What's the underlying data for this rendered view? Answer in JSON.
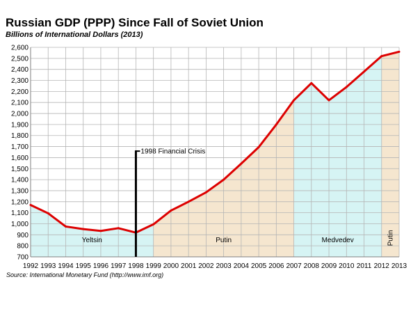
{
  "chart_data": {
    "type": "area",
    "title": "Russian GDP (PPP) Since Fall of Soviet Union",
    "subtitle": "Billions of International Dollars (2013)",
    "source": "Source: International Monetary Fund (http://www.imf.org)",
    "watermark": "",
    "x": [
      1992,
      1993,
      1994,
      1995,
      1996,
      1997,
      1998,
      1999,
      2000,
      2001,
      2002,
      2003,
      2004,
      2005,
      2006,
      2007,
      2008,
      2009,
      2010,
      2011,
      2012,
      2013
    ],
    "series": [
      {
        "values": [
          1170,
          1095,
          975,
          952,
          935,
          960,
          920,
          995,
          1120,
          1200,
          1285,
          1400,
          1545,
          1695,
          1900,
          2120,
          2275,
          2120,
          2240,
          2380,
          2520,
          2560
        ],
        "color": "#dd0000"
      }
    ],
    "ylim": [
      700,
      2600
    ],
    "yticks": [
      700,
      800,
      900,
      1000,
      1100,
      1200,
      1300,
      1400,
      1500,
      1600,
      1700,
      1800,
      1900,
      2000,
      2100,
      2200,
      2300,
      2400,
      2500,
      2600
    ],
    "grid": true,
    "periods": [
      {
        "label": "Yeltsin",
        "start": 1992,
        "end": 1999,
        "color": "#d6f4f4",
        "label_vertical": false
      },
      {
        "label": "Putin",
        "start": 1999,
        "end": 2007,
        "color": "#f5e6cf",
        "label_vertical": false
      },
      {
        "label": "Medvedev",
        "start": 2007,
        "end": 2012,
        "color": "#d6f4f4",
        "label_vertical": false
      },
      {
        "label": "Putin",
        "start": 2012,
        "end": 2013,
        "color": "#f5e6cf",
        "label_vertical": true
      }
    ],
    "annotation": {
      "label": "1998 Financial Crisis",
      "x": 1998,
      "y_top": 1665
    }
  }
}
